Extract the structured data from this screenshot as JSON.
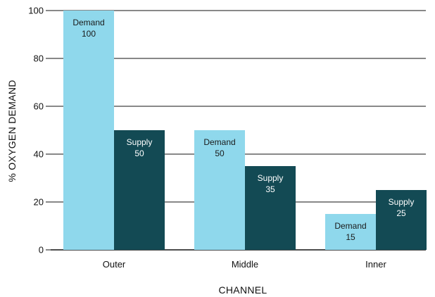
{
  "chart_data": {
    "type": "bar",
    "title": "",
    "xlabel": "CHANNEL",
    "ylabel": "% OXYGEN DEMAND",
    "categories": [
      "Outer",
      "Middle",
      "Inner"
    ],
    "series": [
      {
        "name": "Demand",
        "values": [
          100,
          50,
          15
        ],
        "color": "#8fd8ec",
        "label_color": "#1a1a1a"
      },
      {
        "name": "Supply",
        "values": [
          50,
          35,
          25
        ],
        "color": "#134a54",
        "label_color": "#ffffff"
      }
    ],
    "ylim": [
      0,
      100
    ],
    "yticks": [
      0,
      20,
      40,
      60,
      80,
      100
    ],
    "grid": true,
    "legend": "none",
    "colors": {
      "gridline": "#111111",
      "axis": "#111111"
    }
  }
}
